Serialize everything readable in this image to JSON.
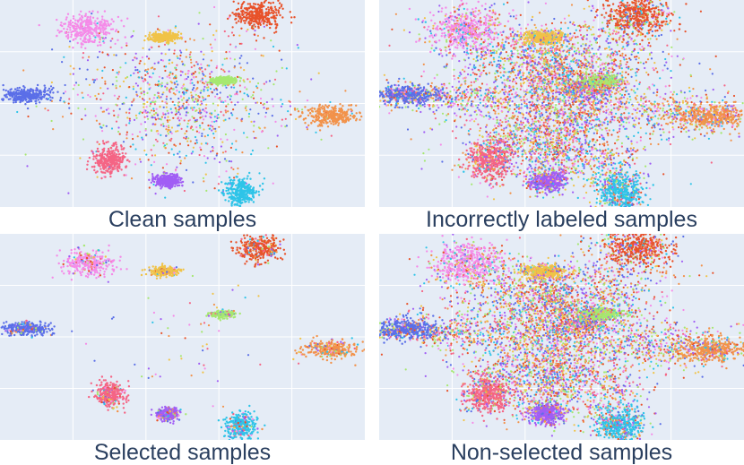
{
  "chart_data": [
    {
      "type": "scatter",
      "title": "Clean samples",
      "density": "sparse",
      "xlim": [
        -1,
        1
      ],
      "ylim": [
        -1,
        1
      ],
      "grid": true,
      "background": "#e5ecf6",
      "clusters": [
        {
          "color": "#f58ae8",
          "center": [
            -0.52,
            0.72
          ],
          "spread": [
            0.13,
            0.13
          ]
        },
        {
          "color": "#f0c348",
          "center": [
            -0.1,
            0.64
          ],
          "spread": [
            0.07,
            0.04
          ]
        },
        {
          "color": "#e8522a",
          "center": [
            0.42,
            0.86
          ],
          "spread": [
            0.12,
            0.12
          ]
        },
        {
          "color": "#a6e870",
          "center": [
            0.22,
            0.22
          ],
          "spread": [
            0.06,
            0.03
          ]
        },
        {
          "color": "#5b6fe8",
          "center": [
            -0.85,
            0.08
          ],
          "spread": [
            0.12,
            0.06
          ]
        },
        {
          "color": "#f2924a",
          "center": [
            0.82,
            -0.12
          ],
          "spread": [
            0.14,
            0.08
          ]
        },
        {
          "color": "#f56585",
          "center": [
            -0.4,
            -0.55
          ],
          "spread": [
            0.08,
            0.12
          ]
        },
        {
          "color": "#a15ef5",
          "center": [
            -0.08,
            -0.75
          ],
          "spread": [
            0.06,
            0.06
          ]
        },
        {
          "color": "#2ec4e8",
          "center": [
            0.32,
            -0.86
          ],
          "spread": [
            0.08,
            0.12
          ]
        }
      ]
    },
    {
      "type": "scatter",
      "title": "Incorrectly labeled samples",
      "density": "dense",
      "xlim": [
        -1,
        1
      ],
      "ylim": [
        -1,
        1
      ],
      "grid": true,
      "background": "#e5ecf6",
      "clusters": [
        {
          "color": "#f58ae8",
          "center": [
            -0.52,
            0.72
          ],
          "spread": [
            0.13,
            0.13
          ]
        },
        {
          "color": "#f0c348",
          "center": [
            -0.1,
            0.64
          ],
          "spread": [
            0.07,
            0.04
          ]
        },
        {
          "color": "#e8522a",
          "center": [
            0.42,
            0.86
          ],
          "spread": [
            0.12,
            0.12
          ]
        },
        {
          "color": "#a6e870",
          "center": [
            0.22,
            0.22
          ],
          "spread": [
            0.06,
            0.03
          ]
        },
        {
          "color": "#5b6fe8",
          "center": [
            -0.85,
            0.08
          ],
          "spread": [
            0.12,
            0.06
          ]
        },
        {
          "color": "#f2924a",
          "center": [
            0.82,
            -0.12
          ],
          "spread": [
            0.14,
            0.08
          ]
        },
        {
          "color": "#f56585",
          "center": [
            -0.4,
            -0.55
          ],
          "spread": [
            0.08,
            0.12
          ]
        },
        {
          "color": "#a15ef5",
          "center": [
            -0.08,
            -0.75
          ],
          "spread": [
            0.06,
            0.06
          ]
        },
        {
          "color": "#2ec4e8",
          "center": [
            0.32,
            -0.86
          ],
          "spread": [
            0.08,
            0.12
          ]
        }
      ]
    },
    {
      "type": "scatter",
      "title": "Selected samples",
      "density": "clustered",
      "xlim": [
        -1,
        1
      ],
      "ylim": [
        -1,
        1
      ],
      "grid": true,
      "background": "#e5ecf6",
      "clusters": [
        {
          "color": "#f58ae8",
          "center": [
            -0.52,
            0.72
          ],
          "spread": [
            0.13,
            0.13
          ]
        },
        {
          "color": "#f0c348",
          "center": [
            -0.1,
            0.64
          ],
          "spread": [
            0.07,
            0.04
          ]
        },
        {
          "color": "#e8522a",
          "center": [
            0.42,
            0.86
          ],
          "spread": [
            0.12,
            0.12
          ]
        },
        {
          "color": "#a6e870",
          "center": [
            0.22,
            0.22
          ],
          "spread": [
            0.06,
            0.03
          ]
        },
        {
          "color": "#5b6fe8",
          "center": [
            -0.85,
            0.08
          ],
          "spread": [
            0.12,
            0.06
          ]
        },
        {
          "color": "#f2924a",
          "center": [
            0.82,
            -0.12
          ],
          "spread": [
            0.14,
            0.08
          ]
        },
        {
          "color": "#f56585",
          "center": [
            -0.4,
            -0.55
          ],
          "spread": [
            0.08,
            0.12
          ]
        },
        {
          "color": "#a15ef5",
          "center": [
            -0.08,
            -0.75
          ],
          "spread": [
            0.06,
            0.06
          ]
        },
        {
          "color": "#2ec4e8",
          "center": [
            0.32,
            -0.86
          ],
          "spread": [
            0.08,
            0.12
          ]
        }
      ]
    },
    {
      "type": "scatter",
      "title": "Non-selected samples",
      "density": "dense",
      "xlim": [
        -1,
        1
      ],
      "ylim": [
        -1,
        1
      ],
      "grid": true,
      "background": "#e5ecf6",
      "clusters": [
        {
          "color": "#f58ae8",
          "center": [
            -0.52,
            0.72
          ],
          "spread": [
            0.13,
            0.13
          ]
        },
        {
          "color": "#f0c348",
          "center": [
            -0.1,
            0.64
          ],
          "spread": [
            0.07,
            0.04
          ]
        },
        {
          "color": "#e8522a",
          "center": [
            0.42,
            0.86
          ],
          "spread": [
            0.12,
            0.12
          ]
        },
        {
          "color": "#a6e870",
          "center": [
            0.22,
            0.22
          ],
          "spread": [
            0.06,
            0.03
          ]
        },
        {
          "color": "#5b6fe8",
          "center": [
            -0.85,
            0.08
          ],
          "spread": [
            0.12,
            0.06
          ]
        },
        {
          "color": "#f2924a",
          "center": [
            0.82,
            -0.12
          ],
          "spread": [
            0.14,
            0.08
          ]
        },
        {
          "color": "#f56585",
          "center": [
            -0.4,
            -0.55
          ],
          "spread": [
            0.08,
            0.12
          ]
        },
        {
          "color": "#a15ef5",
          "center": [
            -0.08,
            -0.75
          ],
          "spread": [
            0.06,
            0.06
          ]
        },
        {
          "color": "#2ec4e8",
          "center": [
            0.32,
            -0.86
          ],
          "spread": [
            0.08,
            0.12
          ]
        }
      ]
    }
  ]
}
